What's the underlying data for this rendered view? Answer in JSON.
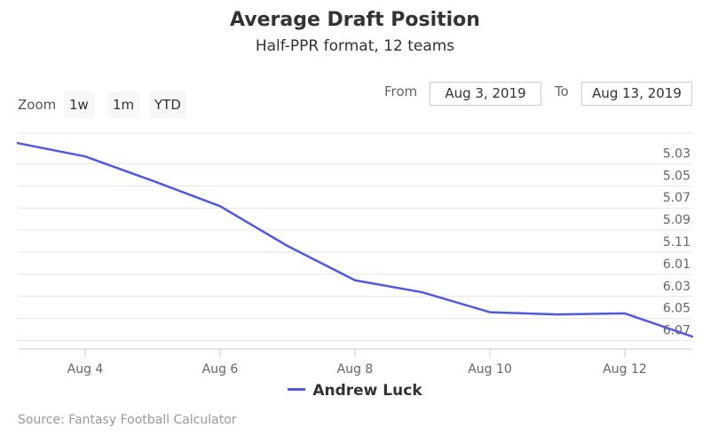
{
  "header": {
    "title": "Average Draft Position",
    "subtitle": "Half-PPR format, 12 teams"
  },
  "zoom": {
    "label": "Zoom",
    "buttons": [
      "1w",
      "1m",
      "YTD"
    ]
  },
  "range": {
    "from_label": "From",
    "from_value": "Aug 3, 2019",
    "to_label": "To",
    "to_value": "Aug 13, 2019"
  },
  "credits": "Source: Fantasy Football Calculator",
  "colors": {
    "series": "#5059e0",
    "grid": "#e6e6e6",
    "axis": "#cccccc"
  },
  "chart_data": {
    "type": "line",
    "title": "Average Draft Position",
    "subtitle": "Half-PPR format, 12 teams",
    "x_type": "date",
    "x_ticks": [
      "Aug 4",
      "Aug 6",
      "Aug 8",
      "Aug 10",
      "Aug 12"
    ],
    "x_tick_dates": [
      "2019-08-04",
      "2019-08-06",
      "2019-08-08",
      "2019-08-10",
      "2019-08-12"
    ],
    "xlim": [
      "2019-08-03",
      "2019-08-13"
    ],
    "y_ticks": [
      "5.03",
      "5.05",
      "5.07",
      "5.09",
      "5.11",
      "6.01",
      "6.03",
      "6.05",
      "6.07"
    ],
    "y_tick_picks": [
      27,
      29,
      31,
      33,
      35,
      37,
      39,
      41,
      43
    ],
    "y_reversed": true,
    "ylim": [
      26,
      44
    ],
    "grid": true,
    "legend_position": "bottom-center",
    "series": [
      {
        "name": "Andrew Luck",
        "x": [
          "2019-08-03",
          "2019-08-04",
          "2019-08-05",
          "2019-08-06",
          "2019-08-07",
          "2019-08-08",
          "2019-08-09",
          "2019-08-10",
          "2019-08-11",
          "2019-08-12",
          "2019-08-13"
        ],
        "y": [
          26.1,
          27.3,
          29.5,
          31.8,
          35.4,
          38.5,
          39.6,
          41.4,
          41.6,
          41.5,
          43.6
        ]
      }
    ]
  }
}
